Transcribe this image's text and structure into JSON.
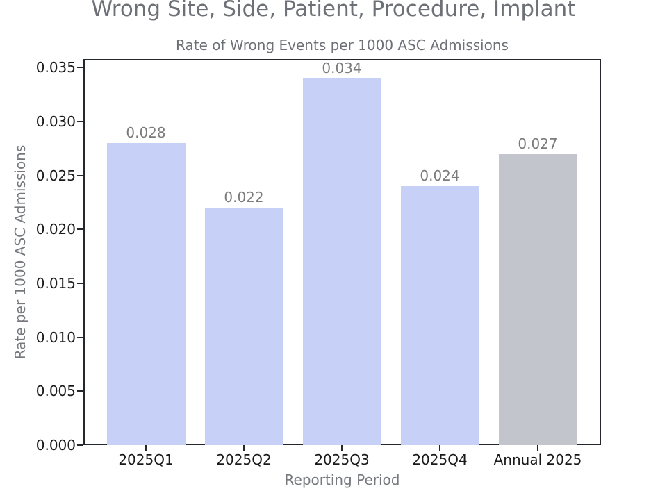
{
  "header": {
    "title": "Wrong Site, Side, Patient, Procedure, Implant"
  },
  "chart_data": {
    "type": "bar",
    "title": "Rate of Wrong Events per 1000 ASC Admissions",
    "xlabel": "Reporting Period",
    "ylabel": "Rate per 1000 ASC Admissions",
    "categories": [
      "2025Q1",
      "2025Q2",
      "2025Q3",
      "2025Q4",
      "Annual 2025"
    ],
    "values": [
      0.028,
      0.022,
      0.034,
      0.024,
      0.027
    ],
    "bar_labels": [
      "0.028",
      "0.022",
      "0.034",
      "0.024",
      "0.027"
    ],
    "bar_colors": [
      "#c7d1f7",
      "#c7d1f7",
      "#c7d1f7",
      "#c7d1f7",
      "#c2c5cc"
    ],
    "ylim": [
      0,
      0.0358
    ],
    "yticks": [
      0.0,
      0.005,
      0.01,
      0.015,
      0.02,
      0.025,
      0.03,
      0.035
    ],
    "ytick_labels": [
      "0.000",
      "0.005",
      "0.010",
      "0.015",
      "0.020",
      "0.025",
      "0.030",
      "0.035"
    ],
    "grid": false,
    "legend": null,
    "layout_hints": {
      "bar_color_note": "quarterly bars periwinkle, annual bar gray",
      "value_labels_position": "above bars",
      "spine_color": "#24272b"
    }
  }
}
